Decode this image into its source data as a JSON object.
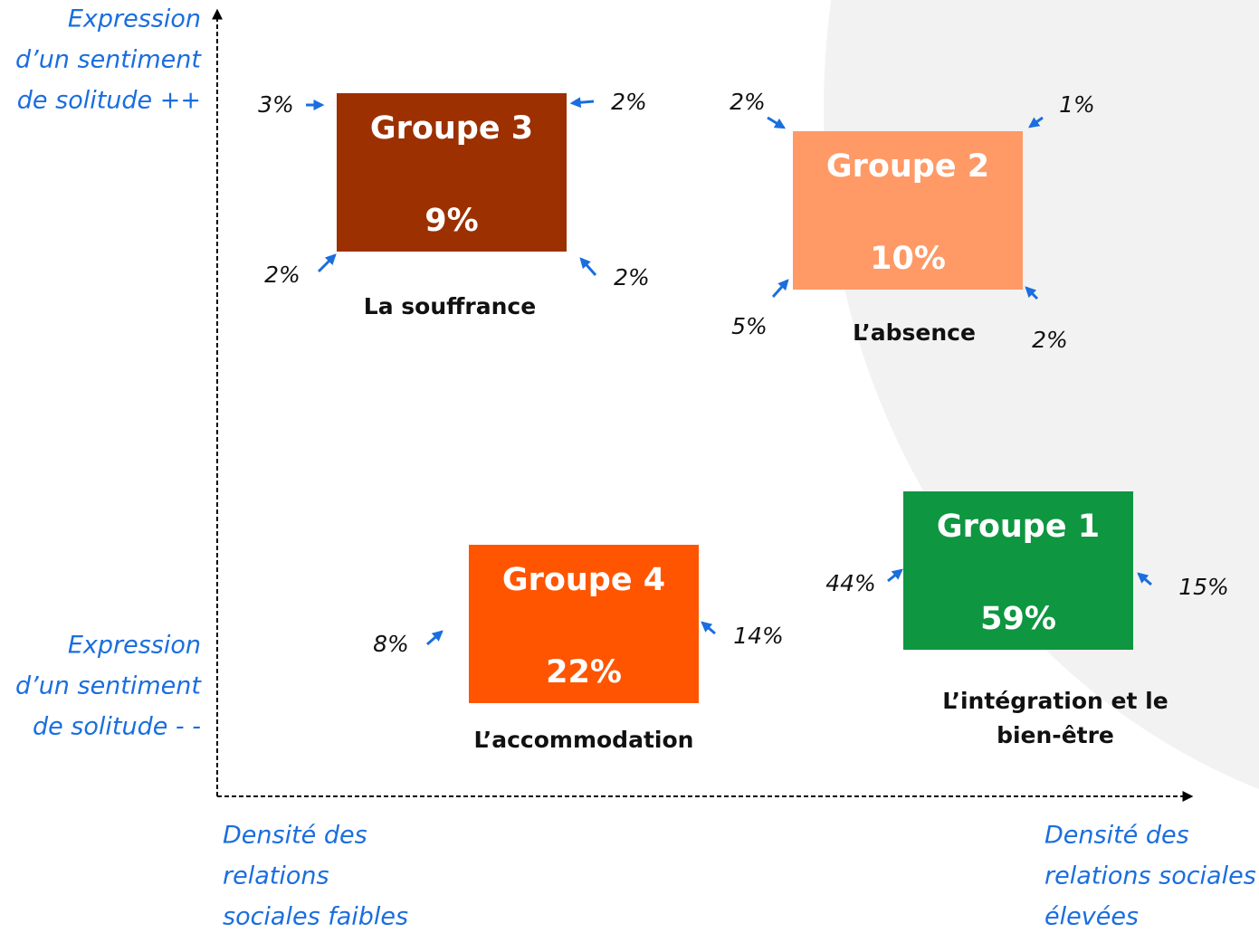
{
  "axes": {
    "y_high": [
      "Expression",
      "d’un sentiment",
      "de solitude ++"
    ],
    "y_low": [
      "Expression",
      "d’un sentiment",
      "de solitude - -"
    ],
    "x_low": [
      "Densité des",
      "relations",
      "sociales faibles"
    ],
    "x_high": [
      "Densité des",
      "relations sociales",
      "élevées"
    ]
  },
  "groups": [
    {
      "title": "Groupe 3",
      "share": "9%",
      "caption": [
        "La souffrance"
      ],
      "color": "#9c3000",
      "corners": [
        "3%",
        "2%",
        "2%",
        "2%"
      ]
    },
    {
      "title": "Groupe 2",
      "share": "10%",
      "caption": [
        "L’absence"
      ],
      "color": "#ff9966",
      "corners": [
        "2%",
        "1%",
        "5%",
        "2%"
      ]
    },
    {
      "title": "Groupe 4",
      "share": "22%",
      "caption": [
        "L’accommodation"
      ],
      "color": "#ff5500",
      "corners": [
        "8%",
        "14%"
      ]
    },
    {
      "title": "Groupe 1",
      "share": "59%",
      "caption": [
        "L’intégration et le",
        "bien-être"
      ],
      "color": "#0e9640",
      "corners": [
        "44%",
        "15%"
      ]
    }
  ]
}
